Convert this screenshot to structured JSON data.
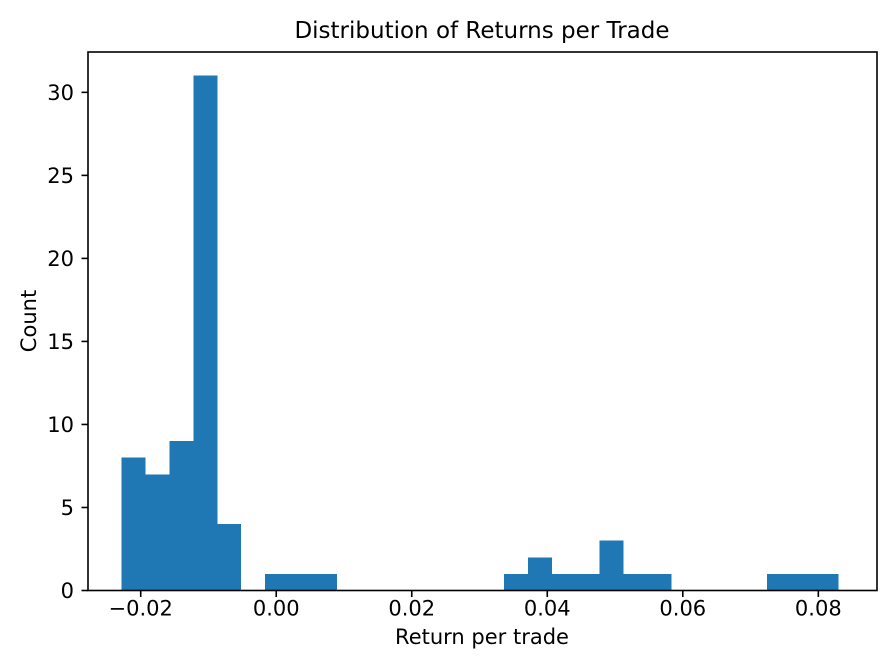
{
  "figure": {
    "background": "#ffffff"
  },
  "chart_data": {
    "type": "bar",
    "subtype": "histogram",
    "title": "Distribution of Returns per Trade",
    "xlabel": "Return per trade",
    "ylabel": "Count",
    "bar_color": "#1f77b4",
    "axis_color": "#000000",
    "grid": false,
    "legend": null,
    "xlim": [
      -0.02778,
      0.08866
    ],
    "ylim": [
      0,
      32.43
    ],
    "bin_edges": [
      -0.0228,
      -0.019274,
      -0.015747,
      -0.012221,
      -0.008695,
      -0.005168,
      -0.001642,
      0.001884,
      0.005411,
      0.008937,
      0.012463,
      0.01599,
      0.019516,
      0.023042,
      0.026569,
      0.030095,
      0.033621,
      0.037148,
      0.040674,
      0.0442,
      0.047727,
      0.051253,
      0.054779,
      0.058306,
      0.061832,
      0.065358,
      0.068885,
      0.072411,
      0.075937,
      0.079464,
      0.08299
    ],
    "counts": [
      8,
      7,
      9,
      31,
      4,
      0,
      1,
      1,
      1,
      0,
      0,
      0,
      0,
      0,
      0,
      0,
      1,
      2,
      1,
      1,
      3,
      1,
      1,
      0,
      0,
      0,
      0,
      1,
      1,
      1
    ],
    "xticks": {
      "values": [
        -0.02,
        0.0,
        0.02,
        0.04,
        0.06,
        0.08
      ],
      "labels": [
        "−0.02",
        "0.00",
        "0.02",
        "0.04",
        "0.06",
        "0.08"
      ]
    },
    "yticks": {
      "values": [
        0,
        5,
        10,
        15,
        20,
        25,
        30
      ],
      "labels": [
        "0",
        "5",
        "10",
        "15",
        "20",
        "25",
        "30"
      ]
    }
  }
}
